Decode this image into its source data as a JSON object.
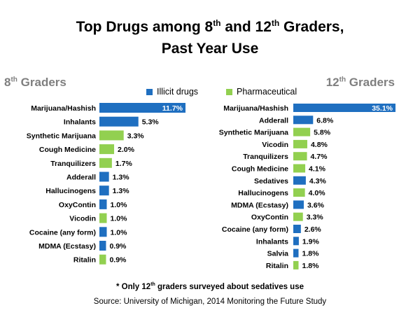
{
  "title": {
    "line1_prefix": "Top Drugs among  8",
    "line1_sup1": "th",
    "line1_mid": " and 12",
    "line1_sup2": "th",
    "line1_suffix": " Graders,",
    "line2": "Past Year Use"
  },
  "legend": {
    "illicit": "Illicit drugs",
    "pharmaceutical": "Pharmaceutical"
  },
  "colors": {
    "illicit": "#1f6fc0",
    "pharmaceutical": "#92d050"
  },
  "footnote": {
    "prefix": "* Only 12",
    "sup": "th",
    "suffix": " graders surveyed about sedatives use"
  },
  "source": "Source: University of Michigan, 2014 Monitoring the Future Study",
  "chart_data": [
    {
      "type": "bar",
      "orientation": "horizontal",
      "title": "8th Graders",
      "title_main": "8",
      "title_sup": "th",
      "title_rest": " Graders",
      "categories": [
        "Marijuana/Hashish",
        "Inhalants",
        "Synthetic Marijuana",
        "Cough Medicine",
        "Tranquilizers",
        "Adderall",
        "Hallucinogens",
        "OxyContin",
        "Vicodin",
        "Cocaine (any form)",
        "MDMA (Ecstasy)",
        "Ritalin"
      ],
      "values": [
        11.7,
        5.3,
        3.3,
        2.0,
        1.7,
        1.3,
        1.3,
        1.0,
        1.0,
        1.0,
        0.9,
        0.9
      ],
      "labels": [
        "11.7%",
        "5.3%",
        "3.3%",
        "2.0%",
        "1.7%",
        "1.3%",
        "1.3%",
        "1.0%",
        "1.0%",
        "1.0%",
        "0.9%",
        "0.9%"
      ],
      "kinds": [
        "illicit",
        "illicit",
        "pharmaceutical",
        "pharmaceutical",
        "pharmaceutical",
        "illicit",
        "illicit",
        "illicit",
        "pharmaceutical",
        "illicit",
        "illicit",
        "pharmaceutical"
      ],
      "xlim": [
        0,
        11.7
      ]
    },
    {
      "type": "bar",
      "orientation": "horizontal",
      "title": "12th Graders",
      "title_main": "12",
      "title_sup": "th",
      "title_rest": " Graders",
      "categories": [
        "Marijuana/Hashish",
        "Adderall",
        "Synthetic Marijuana",
        "Vicodin",
        "Tranquilizers",
        "Cough Medicine",
        "Sedatives",
        "Hallucinogens",
        "MDMA (Ecstasy)",
        "OxyContin",
        "Cocaine (any form)",
        "Inhalants",
        "Salvia",
        "Ritalin"
      ],
      "values": [
        35.1,
        6.8,
        5.8,
        4.8,
        4.7,
        4.1,
        4.3,
        4.0,
        3.6,
        3.3,
        2.6,
        1.9,
        1.8,
        1.8
      ],
      "labels": [
        "35.1%",
        "6.8%",
        "5.8%",
        "4.8%",
        "4.7%",
        "4.1%",
        "4.3%",
        "4.0%",
        "3.6%",
        "3.3%",
        "2.6%",
        "1.9%",
        "1.8%",
        "1.8%"
      ],
      "kinds": [
        "illicit",
        "illicit",
        "pharmaceutical",
        "pharmaceutical",
        "pharmaceutical",
        "pharmaceutical",
        "illicit",
        "pharmaceutical",
        "illicit",
        "pharmaceutical",
        "illicit",
        "illicit",
        "illicit",
        "pharmaceutical"
      ],
      "xlim": [
        0,
        35.1
      ]
    }
  ]
}
